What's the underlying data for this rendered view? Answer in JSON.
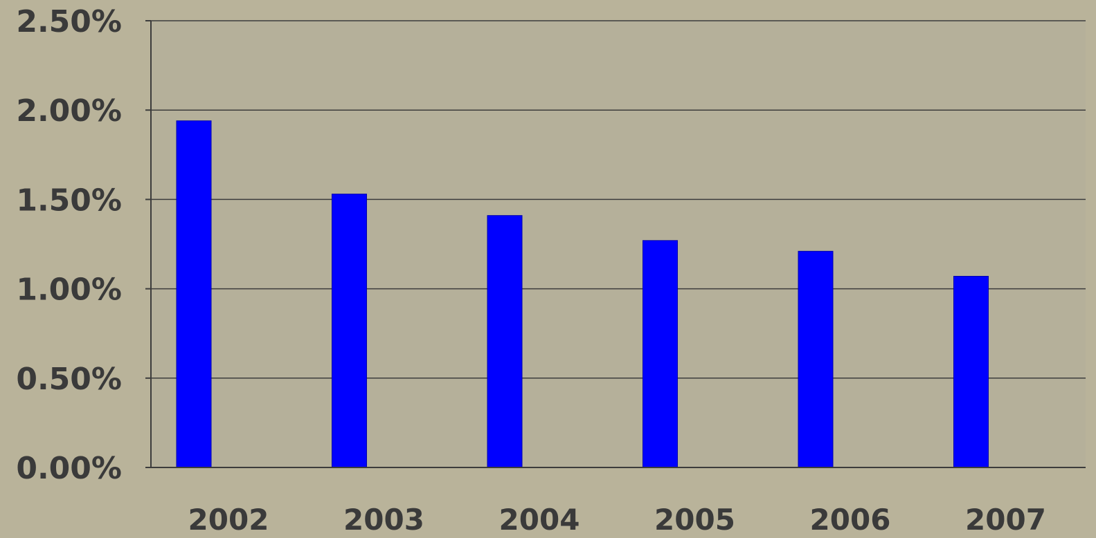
{
  "chart_data": {
    "type": "bar",
    "title": "",
    "xlabel": "",
    "ylabel": "",
    "categories": [
      "2002",
      "2003",
      "2004",
      "2005",
      "2006",
      "2007"
    ],
    "values": [
      1.94,
      1.53,
      1.41,
      1.27,
      1.21,
      1.07
    ],
    "value_unit": "%",
    "ylim": [
      0,
      2.5
    ],
    "yticks": [
      "0.00%",
      "0.50%",
      "1.00%",
      "1.50%",
      "2.00%",
      "2.50%"
    ],
    "grid": true,
    "legend": "none",
    "colors": {
      "bar": "#0000ff",
      "plot_background": "#b5b09a",
      "page_background": "#b9b39a",
      "text": "#3a3a3a",
      "grid": "#3c3c3c"
    }
  }
}
